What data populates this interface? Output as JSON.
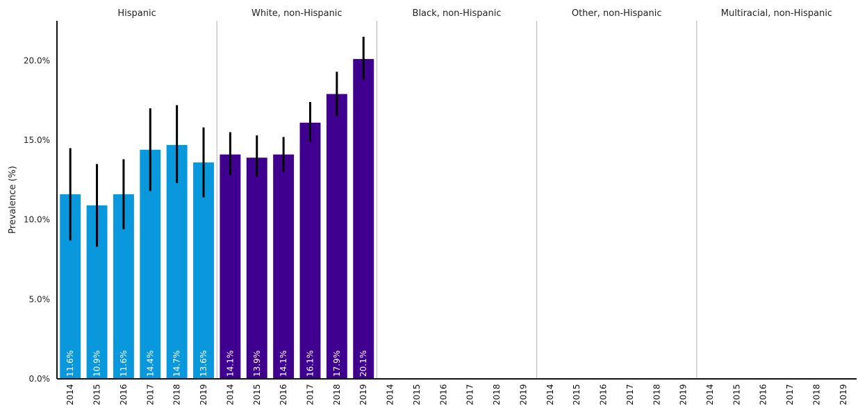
{
  "chart_data": {
    "type": "bar",
    "ylabel": "Prevalence (%)",
    "ylim": [
      0,
      22.5
    ],
    "yticks": [
      "0.0%",
      "5.0%",
      "10.0%",
      "15.0%",
      "20.0%"
    ],
    "ytick_values": [
      0,
      5,
      10,
      15,
      20
    ],
    "grid": false,
    "categories": [
      "2014",
      "2015",
      "2016",
      "2017",
      "2018",
      "2019"
    ],
    "panels": [
      {
        "title": "Hispanic",
        "color": "#0a98dc",
        "values": [
          11.6,
          10.9,
          11.6,
          14.4,
          14.7,
          13.6
        ],
        "ci_low": [
          8.7,
          8.3,
          9.4,
          11.8,
          12.3,
          11.4
        ],
        "ci_high": [
          14.5,
          13.5,
          13.8,
          17.0,
          17.2,
          15.8
        ],
        "labels": [
          "11.6%",
          "10.9%",
          "11.6%",
          "14.4%",
          "14.7%",
          "13.6%"
        ]
      },
      {
        "title": "White, non-Hispanic",
        "color": "#40008f",
        "values": [
          14.1,
          13.9,
          14.1,
          16.1,
          17.9,
          20.1
        ],
        "ci_low": [
          12.8,
          12.7,
          13.0,
          14.9,
          16.5,
          18.8
        ],
        "ci_high": [
          15.5,
          15.3,
          15.2,
          17.4,
          19.3,
          21.5
        ],
        "labels": [
          "14.1%",
          "13.9%",
          "14.1%",
          "16.1%",
          "17.9%",
          "20.1%"
        ]
      },
      {
        "title": "Black, non-Hispanic",
        "color": "#40008f",
        "values": [],
        "ci_low": [],
        "ci_high": [],
        "labels": []
      },
      {
        "title": "Other, non-Hispanic",
        "color": "#40008f",
        "values": [],
        "ci_low": [],
        "ci_high": [],
        "labels": []
      },
      {
        "title": "Multiracial, non-Hispanic",
        "color": "#40008f",
        "values": [],
        "ci_low": [],
        "ci_high": [],
        "labels": []
      }
    ]
  }
}
